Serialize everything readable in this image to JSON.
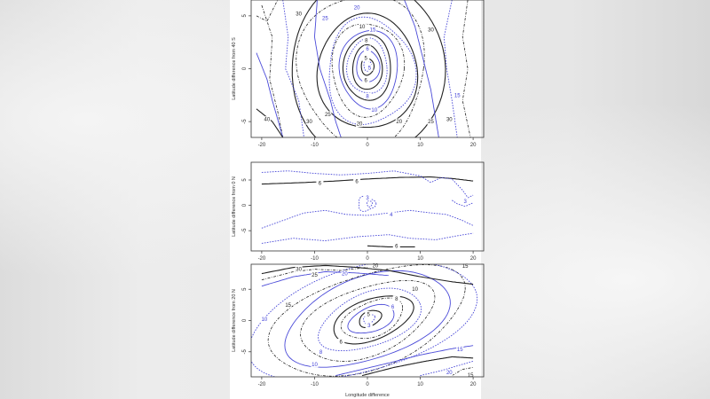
{
  "chart_data": [
    {
      "type": "contour",
      "ylabel": "Latitude difference from 40 S",
      "xlabel": "",
      "xlim": [
        -22,
        22
      ],
      "ylim": [
        -6.5,
        6.5
      ],
      "xticks": [
        "-20",
        "-10",
        "0",
        "10",
        "20"
      ],
      "yticks": [
        "5",
        "0",
        "-5"
      ],
      "series": [
        {
          "style": "black-solid",
          "levels": [
            6,
            8,
            10,
            15,
            20,
            25,
            30
          ]
        },
        {
          "style": "blue-solid",
          "levels": [
            3,
            6,
            8,
            10,
            15,
            20
          ]
        },
        {
          "style": "black-dashed",
          "levels": [
            20,
            25,
            30,
            40
          ]
        },
        {
          "style": "blue-dashed",
          "levels": [
            3,
            6,
            8,
            10,
            15,
            20,
            30
          ]
        }
      ],
      "labels": [
        {
          "t": "20",
          "x": -2,
          "y": 5.8,
          "c": "blue"
        },
        {
          "t": "30",
          "x": -13,
          "y": 5.2,
          "c": "black"
        },
        {
          "t": "25",
          "x": -8,
          "y": 4.8,
          "c": "blue"
        },
        {
          "t": "10",
          "x": -1,
          "y": 4.0,
          "c": "black"
        },
        {
          "t": "15",
          "x": 1,
          "y": 3.7,
          "c": "blue"
        },
        {
          "t": "8",
          "x": -0.2,
          "y": 2.7,
          "c": "black"
        },
        {
          "t": "6",
          "x": 0,
          "y": 1.9,
          "c": "blue"
        },
        {
          "t": "5",
          "x": -0.3,
          "y": 1.0,
          "c": "black"
        },
        {
          "t": "5",
          "x": 0.4,
          "y": 0.1,
          "c": "blue"
        },
        {
          "t": "6",
          "x": -0.3,
          "y": -1.1,
          "c": "black"
        },
        {
          "t": "8",
          "x": 0,
          "y": -2.6,
          "c": "blue"
        },
        {
          "t": "10",
          "x": 1.3,
          "y": -3.9,
          "c": "blue"
        },
        {
          "t": "15",
          "x": 17,
          "y": -2.5,
          "c": "blue"
        },
        {
          "t": "30",
          "x": 12,
          "y": 3.7,
          "c": "black"
        },
        {
          "t": "40",
          "x": -19,
          "y": -4.8,
          "c": "black"
        },
        {
          "t": "30",
          "x": -11,
          "y": -5.0,
          "c": "black"
        },
        {
          "t": "25",
          "x": -7.5,
          "y": -4.3,
          "c": "black"
        },
        {
          "t": "20",
          "x": -1.5,
          "y": -5.2,
          "c": "black"
        },
        {
          "t": "20",
          "x": 6,
          "y": -5.0,
          "c": "black"
        },
        {
          "t": "25",
          "x": 12,
          "y": -5.0,
          "c": "black"
        },
        {
          "t": "30",
          "x": 15.5,
          "y": -4.8,
          "c": "black"
        }
      ]
    },
    {
      "type": "contour",
      "ylabel": "Latitude difference from 0 N",
      "xlabel": "",
      "xlim": [
        -22,
        22
      ],
      "ylim": [
        -9,
        8.5
      ],
      "xticks": [
        "-20",
        "-10",
        "0",
        "10",
        "20"
      ],
      "yticks": [
        "5",
        "0",
        "-5"
      ],
      "series": [
        {
          "style": "black-solid",
          "levels": [
            6
          ]
        },
        {
          "style": "blue-dashed",
          "levels": [
            3,
            4
          ]
        }
      ],
      "labels": [
        {
          "t": "6",
          "x": -9,
          "y": 4.4,
          "c": "black"
        },
        {
          "t": "6",
          "x": -2,
          "y": 4.7,
          "c": "black"
        },
        {
          "t": "3",
          "x": 0,
          "y": 1.5,
          "c": "blue"
        },
        {
          "t": "3",
          "x": 18.5,
          "y": 0.8,
          "c": "blue"
        },
        {
          "t": "4",
          "x": 4.5,
          "y": -1.8,
          "c": "blue"
        },
        {
          "t": "6",
          "x": 5.5,
          "y": -8.0,
          "c": "black"
        }
      ]
    },
    {
      "type": "contour",
      "ylabel": "Latitude difference from 20 N",
      "xlabel": "Longitude difference",
      "xlim": [
        -22,
        22
      ],
      "ylim": [
        -9,
        9
      ],
      "xticks": [
        "-20",
        "-10",
        "0",
        "10",
        "20"
      ],
      "yticks": [
        "5",
        "0",
        "-5"
      ],
      "series": [
        {
          "style": "black-solid",
          "levels": [
            6,
            8,
            15,
            20,
            30
          ]
        },
        {
          "style": "blue-solid",
          "levels": [
            3,
            6,
            8,
            10,
            15,
            20
          ]
        },
        {
          "style": "black-dashed",
          "levels": [
            8,
            10,
            15,
            20,
            25
          ]
        },
        {
          "style": "blue-dashed",
          "levels": [
            3,
            6,
            8,
            10,
            15,
            20
          ]
        }
      ],
      "labels": [
        {
          "t": "30",
          "x": -13,
          "y": 8.2,
          "c": "black"
        },
        {
          "t": "25",
          "x": -10,
          "y": 7.3,
          "c": "black"
        },
        {
          "t": "20",
          "x": -4.3,
          "y": 7.5,
          "c": "blue"
        },
        {
          "t": "20",
          "x": 1.5,
          "y": 8.8,
          "c": "black"
        },
        {
          "t": "15",
          "x": 18.5,
          "y": 8.7,
          "c": "black"
        },
        {
          "t": "10",
          "x": 9,
          "y": 5.0,
          "c": "black"
        },
        {
          "t": "10",
          "x": -19.5,
          "y": 0.2,
          "c": "blue"
        },
        {
          "t": "15",
          "x": -15,
          "y": 2.5,
          "c": "black"
        },
        {
          "t": "8",
          "x": 5.5,
          "y": 3.5,
          "c": "black"
        },
        {
          "t": "6",
          "x": 4.8,
          "y": 2.2,
          "c": "blue"
        },
        {
          "t": "5",
          "x": 0.2,
          "y": 1.0,
          "c": "black"
        },
        {
          "t": "3",
          "x": 0.3,
          "y": -0.8,
          "c": "blue"
        },
        {
          "t": "6",
          "x": -5,
          "y": -3.4,
          "c": "black"
        },
        {
          "t": "8",
          "x": -8.8,
          "y": -5.0,
          "c": "blue"
        },
        {
          "t": "10",
          "x": -10,
          "y": -7.0,
          "c": "blue"
        },
        {
          "t": "15",
          "x": 17.5,
          "y": -4.6,
          "c": "blue"
        },
        {
          "t": "20",
          "x": 15.5,
          "y": -8.3,
          "c": "blue"
        },
        {
          "t": "15",
          "x": 19.5,
          "y": -8.7,
          "c": "black"
        }
      ]
    }
  ]
}
